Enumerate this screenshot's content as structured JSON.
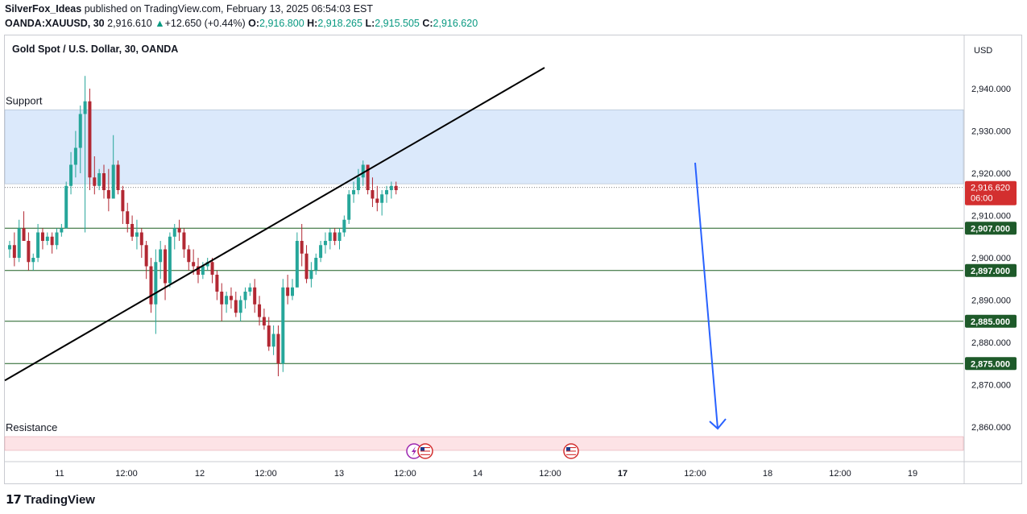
{
  "header": {
    "author": "SilverFox_Ideas",
    "published": "published on TradingView.com, February 13, 2025 06:54:03 EST",
    "symbol": "OANDA:XAUUSD, 30",
    "last": "2,916.610",
    "change_arrow": "▲",
    "change": "+12.650 (+0.44%)",
    "open_label": "O:",
    "open": "2,916.800",
    "high_label": "H:",
    "high": "2,918.265",
    "low_label": "L:",
    "low": "2,915.505",
    "close_label": "C:",
    "close": "2,916.620"
  },
  "footer": {
    "logo_mark": "𝟭𝟳",
    "logo_text": "TradingView"
  },
  "colors": {
    "up": "#089981",
    "down": "#f23645",
    "candle_up": "#26a69a",
    "candle_down": "#b22833",
    "support_zone": "#dbe9fb",
    "resistance_zone": "#fde3e6",
    "level_line": "#1b5e20",
    "level_label_bg": "#1e5a2a",
    "price_label_bg": "#d32f2f",
    "arrow": "#2962ff",
    "trendline": "#000000"
  },
  "chart_data": {
    "type": "candlestick",
    "title": "Gold Spot / U.S. Dollar, 30, OANDA",
    "currency": "USD",
    "y_ticks": [
      "2,940.000",
      "2,930.000",
      "2,920.000",
      "2,910.000",
      "2,900.000",
      "2,890.000",
      "2,880.000",
      "2,870.000",
      "2,860.000"
    ],
    "y_tick_values": [
      2940,
      2930,
      2920,
      2910,
      2900,
      2890,
      2880,
      2870,
      2860
    ],
    "ylim": [
      2855,
      2947
    ],
    "x_ticks": [
      {
        "label": "11",
        "bold": false
      },
      {
        "label": "12:00",
        "bold": false
      },
      {
        "label": "12",
        "bold": false
      },
      {
        "label": "12:00",
        "bold": false
      },
      {
        "label": "13",
        "bold": false
      },
      {
        "label": "12:00",
        "bold": false
      },
      {
        "label": "14",
        "bold": false
      },
      {
        "label": "12:00",
        "bold": false
      },
      {
        "label": "17",
        "bold": true
      },
      {
        "label": "12:00",
        "bold": false
      },
      {
        "label": "18",
        "bold": false
      },
      {
        "label": "12:00",
        "bold": false
      },
      {
        "label": "19",
        "bold": false
      }
    ],
    "support_zone": {
      "label": "Support",
      "from": 2917.5,
      "to": 2935
    },
    "resistance_zone": {
      "label": "Resistance",
      "from": 2855,
      "to": 2858
    },
    "levels": [
      {
        "value": 2907,
        "label": "2,907.000"
      },
      {
        "value": 2897,
        "label": "2,897.000"
      },
      {
        "value": 2885,
        "label": "2,885.000"
      },
      {
        "value": 2875,
        "label": "2,875.000"
      }
    ],
    "current_price": {
      "value": 2916.62,
      "label": "2,916.620",
      "countdown": "06:00"
    },
    "events": [
      "flash-event-icon",
      "us-flag-icon",
      "us-flag-icon"
    ],
    "candles": [
      [
        2902,
        2904,
        2900,
        2903
      ],
      [
        2903,
        2906,
        2898,
        2900
      ],
      [
        2900,
        2909,
        2899,
        2907
      ],
      [
        2907,
        2911,
        2904,
        2904
      ],
      [
        2904,
        2906,
        2897,
        2899
      ],
      [
        2899,
        2901,
        2897,
        2900
      ],
      [
        2900,
        2908,
        2899,
        2906
      ],
      [
        2906,
        2907,
        2902,
        2904
      ],
      [
        2904,
        2906,
        2903,
        2905
      ],
      [
        2905,
        2906,
        2901,
        2903
      ],
      [
        2903,
        2907,
        2902,
        2906
      ],
      [
        2906,
        2908,
        2905,
        2907
      ],
      [
        2907,
        2918,
        2907,
        2917
      ],
      [
        2917,
        2925,
        2915,
        2922
      ],
      [
        2922,
        2930,
        2919,
        2926
      ],
      [
        2926,
        2936,
        2920,
        2934
      ],
      [
        2934,
        2943,
        2906,
        2937
      ],
      [
        2937,
        2940,
        2916,
        2919
      ],
      [
        2919,
        2924,
        2915,
        2917
      ],
      [
        2917,
        2921,
        2916,
        2920
      ],
      [
        2920,
        2922,
        2914,
        2916
      ],
      [
        2916,
        2921,
        2911,
        2914
      ],
      [
        2914,
        2929,
        2914,
        2922
      ],
      [
        2922,
        2923,
        2915,
        2916
      ],
      [
        2916,
        2917,
        2908,
        2911
      ],
      [
        2911,
        2913,
        2906,
        2908
      ],
      [
        2908,
        2910,
        2904,
        2905
      ],
      [
        2905,
        2909,
        2902,
        2906
      ],
      [
        2906,
        2907,
        2900,
        2903
      ],
      [
        2903,
        2904,
        2895,
        2898
      ],
      [
        2898,
        2900,
        2887,
        2889
      ],
      [
        2889,
        2902,
        2882,
        2899
      ],
      [
        2899,
        2904,
        2895,
        2902
      ],
      [
        2902,
        2903,
        2890,
        2894
      ],
      [
        2894,
        2906,
        2893,
        2905
      ],
      [
        2905,
        2908,
        2902,
        2907
      ],
      [
        2907,
        2909,
        2904,
        2906
      ],
      [
        2906,
        2907,
        2900,
        2902
      ],
      [
        2902,
        2903,
        2897,
        2899
      ],
      [
        2899,
        2902,
        2896,
        2898
      ],
      [
        2898,
        2900,
        2894,
        2896
      ],
      [
        2896,
        2899,
        2895,
        2898
      ],
      [
        2898,
        2900,
        2897,
        2899
      ],
      [
        2899,
        2900,
        2894,
        2896
      ],
      [
        2896,
        2897,
        2890,
        2892
      ],
      [
        2892,
        2894,
        2885,
        2889
      ],
      [
        2889,
        2892,
        2887,
        2891
      ],
      [
        2891,
        2893,
        2888,
        2890
      ],
      [
        2890,
        2892,
        2886,
        2887
      ],
      [
        2887,
        2891,
        2885,
        2890
      ],
      [
        2890,
        2893,
        2888,
        2892
      ],
      [
        2892,
        2894,
        2891,
        2893
      ],
      [
        2893,
        2895,
        2887,
        2889
      ],
      [
        2889,
        2891,
        2884,
        2886
      ],
      [
        2886,
        2888,
        2883,
        2884
      ],
      [
        2884,
        2886,
        2878,
        2879
      ],
      [
        2879,
        2884,
        2877,
        2882
      ],
      [
        2882,
        2884,
        2872,
        2875
      ],
      [
        2875,
        2895,
        2873,
        2893
      ],
      [
        2893,
        2896,
        2889,
        2891
      ],
      [
        2891,
        2895,
        2890,
        2893
      ],
      [
        2893,
        2906,
        2893,
        2904
      ],
      [
        2904,
        2908,
        2898,
        2901
      ],
      [
        2901,
        2903,
        2894,
        2895
      ],
      [
        2895,
        2899,
        2893,
        2897
      ],
      [
        2897,
        2901,
        2896,
        2900
      ],
      [
        2900,
        2904,
        2899,
        2903
      ],
      [
        2903,
        2906,
        2901,
        2904
      ],
      [
        2904,
        2907,
        2902,
        2906
      ],
      [
        2906,
        2907,
        2903,
        2904
      ],
      [
        2904,
        2907,
        2902,
        2906
      ],
      [
        2906,
        2910,
        2905,
        2909
      ],
      [
        2909,
        2916,
        2908,
        2915
      ],
      [
        2915,
        2918,
        2913,
        2916
      ],
      [
        2916,
        2921,
        2915,
        2919
      ],
      [
        2919,
        2923,
        2917,
        2922
      ],
      [
        2922,
        2922,
        2915,
        2916
      ],
      [
        2916,
        2919,
        2912,
        2914
      ],
      [
        2914,
        2917,
        2911,
        2913
      ],
      [
        2913,
        2916,
        2910,
        2915
      ],
      [
        2915,
        2917,
        2913,
        2916
      ],
      [
        2916,
        2918,
        2914,
        2917
      ],
      [
        2917,
        2918,
        2915,
        2916
      ]
    ],
    "trendline": {
      "from": {
        "i": 0,
        "v": 2871
      },
      "to": {
        "i": 127,
        "v": 2946
      }
    },
    "arrow": {
      "from": {
        "i": 163,
        "v": 2922.5
      },
      "to": {
        "i": 170,
        "v": 2859
      }
    },
    "candle_count_visible": 250
  }
}
